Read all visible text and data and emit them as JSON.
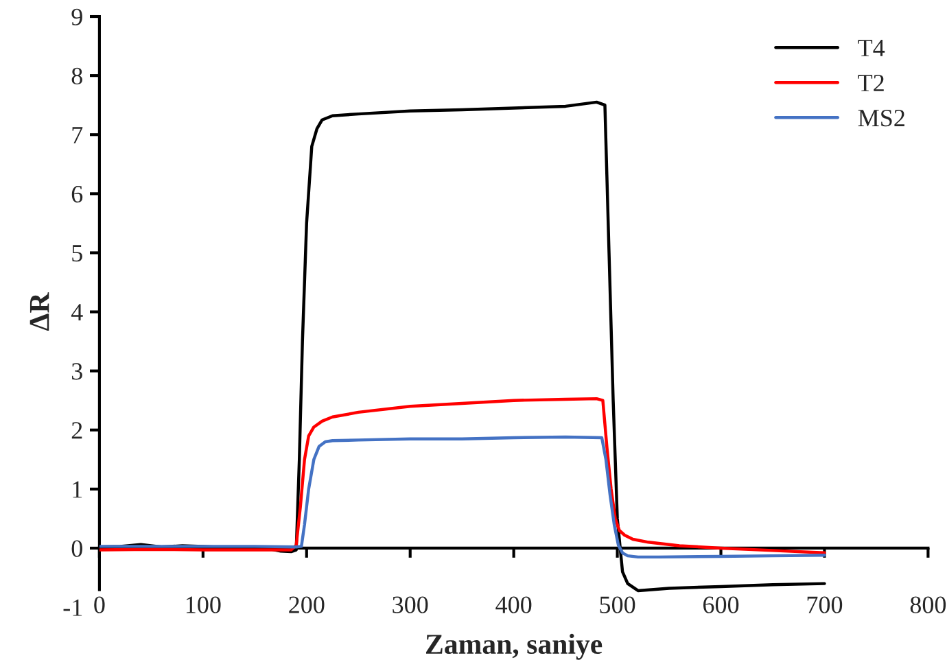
{
  "chart_data": {
    "type": "line",
    "xlabel": "Zaman, saniye",
    "ylabel": "ΔR",
    "xlim": [
      0,
      800
    ],
    "xticks": [
      0,
      100,
      200,
      300,
      400,
      500,
      600,
      700,
      800
    ],
    "ylim": [
      -1,
      9
    ],
    "yticks": [
      -1,
      0,
      1,
      2,
      3,
      4,
      5,
      6,
      7,
      8,
      9
    ],
    "grid": false,
    "legend": "top right",
    "line_style": "solid",
    "marker": "none",
    "series": [
      {
        "name": "T4",
        "color": "#000000",
        "x": [
          0,
          20,
          40,
          60,
          80,
          100,
          120,
          140,
          160,
          175,
          185,
          190,
          193,
          196,
          200,
          205,
          210,
          215,
          225,
          250,
          300,
          350,
          400,
          450,
          480,
          488,
          492,
          496,
          500,
          505,
          510,
          520,
          550,
          600,
          650,
          700
        ],
        "values": [
          0.02,
          0.03,
          0.06,
          0.02,
          0.04,
          0.03,
          0.01,
          0.02,
          0.0,
          -0.05,
          -0.06,
          -0.03,
          1.5,
          3.5,
          5.5,
          6.8,
          7.1,
          7.25,
          7.32,
          7.35,
          7.4,
          7.42,
          7.45,
          7.48,
          7.55,
          7.5,
          5.0,
          2.5,
          0.5,
          -0.4,
          -0.6,
          -0.72,
          -0.68,
          -0.65,
          -0.62,
          -0.6
        ]
      },
      {
        "name": "T2",
        "color": "#ff0000",
        "x": [
          0,
          50,
          100,
          150,
          185,
          190,
          194,
          198,
          202,
          207,
          215,
          225,
          250,
          300,
          350,
          400,
          450,
          480,
          486,
          490,
          494,
          498,
          502,
          507,
          515,
          530,
          560,
          600,
          650,
          700
        ],
        "values": [
          -0.03,
          -0.02,
          -0.03,
          -0.03,
          -0.03,
          0.05,
          0.7,
          1.5,
          1.9,
          2.05,
          2.15,
          2.22,
          2.3,
          2.4,
          2.45,
          2.5,
          2.52,
          2.53,
          2.5,
          1.7,
          1.0,
          0.5,
          0.3,
          0.22,
          0.15,
          0.1,
          0.04,
          0.0,
          -0.04,
          -0.08
        ]
      },
      {
        "name": "MS2",
        "color": "#4472c4",
        "x": [
          0,
          50,
          100,
          150,
          190,
          195,
          198,
          202,
          207,
          212,
          218,
          225,
          250,
          300,
          350,
          400,
          450,
          485,
          489,
          493,
          497,
          501,
          505,
          510,
          520,
          540,
          600,
          650,
          700
        ],
        "values": [
          0.03,
          0.03,
          0.03,
          0.03,
          0.02,
          0.03,
          0.4,
          1.0,
          1.5,
          1.72,
          1.8,
          1.82,
          1.83,
          1.85,
          1.85,
          1.87,
          1.88,
          1.87,
          1.5,
          0.9,
          0.4,
          0.05,
          -0.08,
          -0.13,
          -0.15,
          -0.15,
          -0.14,
          -0.13,
          -0.12
        ]
      }
    ]
  }
}
